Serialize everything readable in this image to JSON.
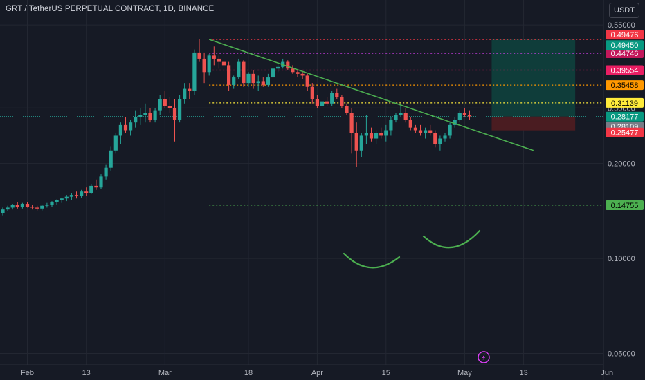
{
  "header": {
    "title": "GRT / TetherUS PERPETUAL CONTRACT, 1D, BINANCE",
    "currency": "USDT"
  },
  "icons": {
    "replay": "lightning-icon"
  },
  "chart_data": {
    "type": "candlestick",
    "yscale": "log",
    "ylim": [
      0.046,
      0.66
    ],
    "xlim": [
      0,
      117
    ],
    "y_ticks": [
      {
        "value": 0.55,
        "label": "0.55000"
      },
      {
        "value": 0.3,
        "label": "0.30000"
      },
      {
        "value": 0.2,
        "label": "0.20000"
      },
      {
        "value": 0.1,
        "label": "0.10000"
      },
      {
        "value": 0.05,
        "label": "0.05000"
      }
    ],
    "x_ticks": [
      {
        "day": 5,
        "label": "Feb"
      },
      {
        "day": 17,
        "label": "13"
      },
      {
        "day": 33,
        "label": "Mar"
      },
      {
        "day": 50,
        "label": "18"
      },
      {
        "day": 64,
        "label": "Apr"
      },
      {
        "day": 78,
        "label": "15"
      },
      {
        "day": 94,
        "label": "May"
      },
      {
        "day": 106,
        "label": "13"
      },
      {
        "day": 123,
        "label": "Jun"
      }
    ],
    "candles": [
      [
        0.139,
        0.145,
        0.137,
        0.143
      ],
      [
        0.143,
        0.147,
        0.141,
        0.145
      ],
      [
        0.145,
        0.149,
        0.143,
        0.148
      ],
      [
        0.148,
        0.151,
        0.144,
        0.146
      ],
      [
        0.146,
        0.15,
        0.144,
        0.149
      ],
      [
        0.149,
        0.151,
        0.145,
        0.146
      ],
      [
        0.146,
        0.148,
        0.143,
        0.145
      ],
      [
        0.145,
        0.147,
        0.142,
        0.144
      ],
      [
        0.144,
        0.148,
        0.142,
        0.147
      ],
      [
        0.147,
        0.15,
        0.145,
        0.148
      ],
      [
        0.148,
        0.152,
        0.146,
        0.151
      ],
      [
        0.151,
        0.154,
        0.148,
        0.153
      ],
      [
        0.153,
        0.156,
        0.15,
        0.155
      ],
      [
        0.155,
        0.159,
        0.152,
        0.157
      ],
      [
        0.157,
        0.161,
        0.153,
        0.159
      ],
      [
        0.159,
        0.163,
        0.155,
        0.158
      ],
      [
        0.158,
        0.165,
        0.156,
        0.163
      ],
      [
        0.163,
        0.168,
        0.158,
        0.161
      ],
      [
        0.161,
        0.172,
        0.16,
        0.17
      ],
      [
        0.17,
        0.178,
        0.165,
        0.168
      ],
      [
        0.168,
        0.185,
        0.166,
        0.182
      ],
      [
        0.182,
        0.198,
        0.178,
        0.194
      ],
      [
        0.194,
        0.226,
        0.19,
        0.22
      ],
      [
        0.22,
        0.25,
        0.215,
        0.245
      ],
      [
        0.245,
        0.27,
        0.23,
        0.265
      ],
      [
        0.265,
        0.28,
        0.25,
        0.255
      ],
      [
        0.255,
        0.275,
        0.245,
        0.27
      ],
      [
        0.27,
        0.295,
        0.26,
        0.28
      ],
      [
        0.28,
        0.3,
        0.265,
        0.285
      ],
      [
        0.285,
        0.31,
        0.27,
        0.29
      ],
      [
        0.29,
        0.3,
        0.27,
        0.275
      ],
      [
        0.275,
        0.3,
        0.27,
        0.295
      ],
      [
        0.295,
        0.33,
        0.285,
        0.32
      ],
      [
        0.32,
        0.34,
        0.3,
        0.305
      ],
      [
        0.305,
        0.325,
        0.29,
        0.3
      ],
      [
        0.3,
        0.32,
        0.235,
        0.275
      ],
      [
        0.275,
        0.33,
        0.27,
        0.32
      ],
      [
        0.32,
        0.36,
        0.31,
        0.345
      ],
      [
        0.345,
        0.36,
        0.32,
        0.34
      ],
      [
        0.34,
        0.46,
        0.33,
        0.45
      ],
      [
        0.45,
        0.495,
        0.42,
        0.43
      ],
      [
        0.43,
        0.45,
        0.36,
        0.39
      ],
      [
        0.39,
        0.445,
        0.38,
        0.44
      ],
      [
        0.44,
        0.47,
        0.41,
        0.43
      ],
      [
        0.43,
        0.44,
        0.4,
        0.42
      ],
      [
        0.42,
        0.43,
        0.39,
        0.41
      ],
      [
        0.41,
        0.42,
        0.34,
        0.355
      ],
      [
        0.355,
        0.38,
        0.345,
        0.375
      ],
      [
        0.375,
        0.43,
        0.37,
        0.42
      ],
      [
        0.42,
        0.425,
        0.35,
        0.36
      ],
      [
        0.36,
        0.39,
        0.35,
        0.385
      ],
      [
        0.385,
        0.395,
        0.345,
        0.36
      ],
      [
        0.36,
        0.38,
        0.34,
        0.365
      ],
      [
        0.365,
        0.375,
        0.35,
        0.355
      ],
      [
        0.355,
        0.385,
        0.35,
        0.375
      ],
      [
        0.375,
        0.405,
        0.37,
        0.4
      ],
      [
        0.4,
        0.415,
        0.39,
        0.405
      ],
      [
        0.405,
        0.43,
        0.4,
        0.42
      ],
      [
        0.42,
        0.425,
        0.395,
        0.4
      ],
      [
        0.4,
        0.41,
        0.385,
        0.39
      ],
      [
        0.39,
        0.395,
        0.375,
        0.385
      ],
      [
        0.385,
        0.39,
        0.37,
        0.38
      ],
      [
        0.38,
        0.385,
        0.34,
        0.35
      ],
      [
        0.35,
        0.36,
        0.31,
        0.32
      ],
      [
        0.32,
        0.33,
        0.3,
        0.305
      ],
      [
        0.305,
        0.32,
        0.3,
        0.315
      ],
      [
        0.315,
        0.325,
        0.305,
        0.31
      ],
      [
        0.31,
        0.34,
        0.305,
        0.335
      ],
      [
        0.335,
        0.345,
        0.32,
        0.325
      ],
      [
        0.325,
        0.33,
        0.3,
        0.305
      ],
      [
        0.305,
        0.31,
        0.285,
        0.29
      ],
      [
        0.29,
        0.3,
        0.215,
        0.25
      ],
      [
        0.25,
        0.27,
        0.195,
        0.22
      ],
      [
        0.22,
        0.25,
        0.21,
        0.245
      ],
      [
        0.245,
        0.285,
        0.23,
        0.25
      ],
      [
        0.25,
        0.26,
        0.235,
        0.24
      ],
      [
        0.24,
        0.255,
        0.23,
        0.25
      ],
      [
        0.25,
        0.26,
        0.24,
        0.245
      ],
      [
        0.245,
        0.265,
        0.235,
        0.255
      ],
      [
        0.255,
        0.28,
        0.245,
        0.275
      ],
      [
        0.275,
        0.29,
        0.27,
        0.285
      ],
      [
        0.285,
        0.31,
        0.28,
        0.29
      ],
      [
        0.29,
        0.3,
        0.27,
        0.275
      ],
      [
        0.275,
        0.28,
        0.255,
        0.26
      ],
      [
        0.26,
        0.265,
        0.25,
        0.255
      ],
      [
        0.255,
        0.265,
        0.245,
        0.25
      ],
      [
        0.25,
        0.26,
        0.24,
        0.255
      ],
      [
        0.255,
        0.265,
        0.245,
        0.25
      ],
      [
        0.25,
        0.255,
        0.225,
        0.23
      ],
      [
        0.23,
        0.245,
        0.22,
        0.24
      ],
      [
        0.24,
        0.25,
        0.235,
        0.245
      ],
      [
        0.245,
        0.27,
        0.24,
        0.265
      ],
      [
        0.265,
        0.28,
        0.26,
        0.275
      ],
      [
        0.275,
        0.295,
        0.27,
        0.29
      ],
      [
        0.29,
        0.3,
        0.28,
        0.285
      ],
      [
        0.285,
        0.295,
        0.275,
        0.282
      ]
    ],
    "line_levels": [
      {
        "price": 0.49476,
        "label": "0.49476",
        "line_color": "#f23645",
        "badge_color": "#f23645",
        "text_color": "#ffffff"
      },
      {
        "price": 0.44746,
        "label": "0.44746",
        "line_color": "#e040fb",
        "badge_color": "#c2185b",
        "text_color": "#ffffff"
      },
      {
        "price": 0.39554,
        "label": "0.39554",
        "line_color": "#e91e63",
        "badge_color": "#e91e63",
        "text_color": "#ffffff"
      },
      {
        "price": 0.35458,
        "label": "0.35458",
        "line_color": "#ff9800",
        "badge_color": "#ff9800",
        "text_color": "#000000"
      },
      {
        "price": 0.31139,
        "label": "0.31139",
        "line_color": "#ffeb3b",
        "badge_color": "#ffeb3b",
        "text_color": "#000000"
      },
      {
        "price": 0.14755,
        "label": "0.14755",
        "line_color": "#4caf50",
        "badge_color": "#4caf50",
        "text_color": "#000000"
      }
    ],
    "position": {
      "start_day": 99.5,
      "end_day": 116.5,
      "entry": 0.28177,
      "target": 0.4945,
      "stop": 0.25477,
      "target_label": "0.49450",
      "entry_label": "0.28177",
      "stop_label": "0.25477",
      "profit_color": "#0f3d3a",
      "loss_color": "#4a1c21",
      "target_badge_color": "#089981",
      "entry_badge_color": "#089981",
      "stop_badge_color": "#f23645"
    },
    "price_badges": [
      {
        "price": 0.28109,
        "label": "0.28109",
        "color": "#787b86",
        "text_color": "#ffffff"
      }
    ],
    "trendline": [
      {
        "day": 42,
        "price": 0.495
      },
      {
        "day": 108,
        "price": 0.22
      }
    ],
    "colors": {
      "up": "#26a69a",
      "down": "#ef5350"
    }
  }
}
